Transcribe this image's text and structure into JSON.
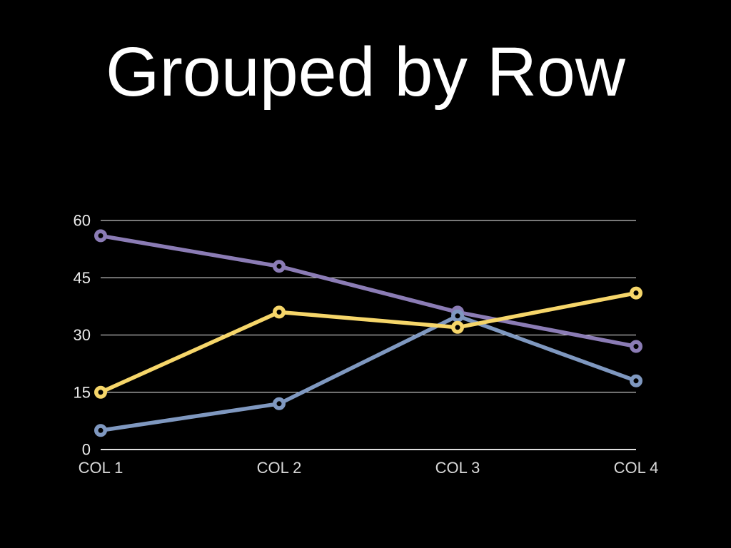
{
  "slide": {
    "background_color": "#000000",
    "title": "Grouped by Row",
    "title_color": "#ffffff"
  },
  "chart_data": {
    "type": "line",
    "title": "Grouped by Row",
    "categories": [
      "COL 1",
      "COL 2",
      "COL 3",
      "COL 4"
    ],
    "series": [
      {
        "color_name": "purple",
        "color": "#8b7cb5",
        "values": [
          56,
          48,
          36,
          27
        ]
      },
      {
        "color_name": "blue",
        "color": "#7f98c0",
        "values": [
          5,
          12,
          35,
          18
        ]
      },
      {
        "color_name": "yellow",
        "color": "#f6d66a",
        "values": [
          15,
          36,
          32,
          41
        ]
      }
    ],
    "ylim": [
      0,
      60
    ],
    "yticks": [
      0,
      15,
      30,
      45,
      60
    ],
    "grid": true,
    "legend": false,
    "marker": "open-circle",
    "line_width": 5.5,
    "marker_radius": 6.25,
    "marker_fill": "#000000",
    "gridline_color": "#f2f2f2",
    "baseline_color": "#ffffff",
    "ytick_label_color": "#ececec",
    "xtick_label_color": "#d9d9d9",
    "tick_font_size": 22
  }
}
